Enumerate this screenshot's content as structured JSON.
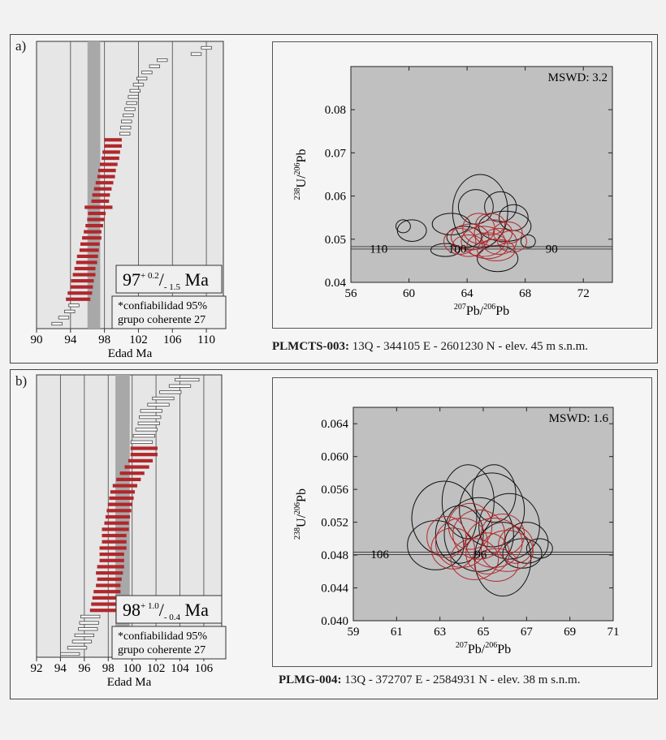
{
  "colors": {
    "accent_red": "#b0282c",
    "plot_gray": "#c0c0c0",
    "band_gray": "#a8a8a8"
  },
  "chart_data": [
    {
      "panel_label": "a)",
      "type": "bar",
      "subtype": "weighted-mean-age-ranked",
      "xlabel": "Edad Ma",
      "xlim": [
        90,
        112
      ],
      "ticks": [
        90,
        94,
        98,
        102,
        106,
        110
      ],
      "tick_labels": [
        "90",
        "94",
        "98",
        "102",
        "106",
        "110"
      ],
      "mean_band": [
        96,
        97.5
      ],
      "result": {
        "value": "97",
        "sup": "+ 0.2",
        "slash": "/",
        "sub": "- 1.5",
        "unit": "Ma"
      },
      "notes": [
        "*confiabilidad 95%",
        "grupo coherente 27"
      ],
      "ages_included": [
        94.9,
        95.1,
        95.3,
        95.4,
        95.6,
        95.7,
        95.9,
        96.0,
        96.2,
        96.3,
        96.5,
        96.6,
        96.8,
        97.0,
        97.1,
        97.3,
        97.5,
        97.6,
        97.8,
        98.0,
        98.2,
        98.3,
        98.5,
        98.7,
        98.8,
        99.0,
        99.0
      ],
      "errors_included": [
        1.4,
        1.4,
        1.3,
        1.3,
        1.3,
        1.2,
        1.2,
        1.2,
        1.1,
        1.1,
        1.1,
        1.0,
        1.0,
        1.0,
        1.0,
        1.6,
        1.0,
        1.0,
        1.0,
        1.0,
        1.0,
        1.0,
        1.0,
        1.0,
        1.0,
        1.0,
        1.0
      ],
      "ages_excluded_low": [
        92.4,
        93.2,
        93.9,
        94.4
      ],
      "errors_excluded_low": [
        0.6,
        0.6,
        0.6,
        0.6
      ],
      "ages_excluded_high": [
        100.4,
        100.5,
        100.6,
        100.8,
        101.0,
        101.2,
        101.4,
        101.6,
        102.0,
        102.4,
        103.0,
        103.9,
        104.8,
        108.8,
        110.0
      ],
      "errors_excluded_high": [
        0.6,
        0.6,
        0.6,
        0.6,
        0.6,
        0.6,
        0.6,
        0.6,
        0.6,
        0.6,
        0.6,
        0.6,
        0.6,
        0.6,
        0.6
      ]
    },
    {
      "panel_label": "a)",
      "type": "scatter",
      "subtype": "tera-wasserburg-concordia",
      "x_label_pre": "207",
      "x_label_mid": "Pb/",
      "x_label_sup2": "206",
      "x_label_post": "Pb",
      "y_label_pre": "238",
      "y_label_mid": "U/",
      "y_label_sup2": "206",
      "y_label_post": "Pb",
      "xlim": [
        56,
        74
      ],
      "ylim": [
        0.04,
        0.09
      ],
      "xticks": [
        56,
        60,
        64,
        68,
        72
      ],
      "xtick_labels": [
        "56",
        "60",
        "64",
        "68",
        "72"
      ],
      "yticks": [
        0.04,
        0.05,
        0.06,
        0.07,
        0.08
      ],
      "ytick_labels": [
        "0.04",
        "0.05",
        "0.06",
        "0.07",
        "0.08"
      ],
      "mswd": "MSWD: 3.2",
      "concordia_y": 0.048,
      "concordia_labels": [
        {
          "text": "110",
          "x": 57.3
        },
        {
          "text": "100",
          "x": 62.7
        },
        {
          "text": "90",
          "x": 69.4
        }
      ],
      "ellipses_black": [
        [
          60.2,
          0.052,
          1.0,
          0.0025
        ],
        [
          59.6,
          0.053,
          0.5,
          0.0015
        ],
        [
          62.9,
          0.0535,
          1.3,
          0.0025
        ],
        [
          64.9,
          0.0565,
          1.9,
          0.0085
        ],
        [
          64.6,
          0.0575,
          1.2,
          0.004
        ],
        [
          66.3,
          0.0575,
          1.1,
          0.0035
        ],
        [
          67.2,
          0.055,
          1.0,
          0.003
        ],
        [
          66.6,
          0.053,
          1.8,
          0.0035
        ],
        [
          62.5,
          0.0475,
          1.0,
          0.0015
        ],
        [
          63.8,
          0.0505,
          1.2,
          0.0025
        ],
        [
          66.1,
          0.0455,
          1.4,
          0.003
        ],
        [
          68.2,
          0.0495,
          0.5,
          0.0015
        ]
      ],
      "ellipses_red": [
        [
          64.2,
          0.0505,
          1.3,
          0.003
        ],
        [
          65.1,
          0.0495,
          1.5,
          0.0035
        ],
        [
          65.8,
          0.0515,
          1.3,
          0.003
        ],
        [
          64.8,
          0.0525,
          1.1,
          0.0035
        ],
        [
          66.2,
          0.0495,
          1.2,
          0.003
        ],
        [
          65.4,
          0.0485,
          1.4,
          0.003
        ],
        [
          64.1,
          0.0485,
          1.1,
          0.0025
        ],
        [
          67.1,
          0.0495,
          1.0,
          0.0025
        ],
        [
          66.8,
          0.0515,
          1.0,
          0.0025
        ],
        [
          65.6,
          0.0535,
          1.0,
          0.0025
        ],
        [
          63.5,
          0.0495,
          1.1,
          0.003
        ],
        [
          66.0,
          0.0475,
          1.3,
          0.0025
        ]
      ],
      "caption_bold": "PLMCTS-003:",
      "caption_rest": " 13Q - 344105 E - 2601230 N - elev. 45 m s.n.m."
    },
    {
      "panel_label": "b)",
      "type": "bar",
      "subtype": "weighted-mean-age-ranked",
      "xlabel": "Edad Ma",
      "xlim": [
        92,
        107.5
      ],
      "ticks": [
        92,
        94,
        96,
        98,
        100,
        102,
        104,
        106
      ],
      "tick_labels": [
        "92",
        "94",
        "96",
        "98",
        "100",
        "102",
        "104",
        "106"
      ],
      "mean_band": [
        98.6,
        99.8
      ],
      "result": {
        "value": "98",
        "sup": "+ 1.0",
        "slash": "/",
        "sub": "- 0.4",
        "unit": "Ma"
      },
      "notes": [
        "*confiabilidad 95%",
        "grupo coherente 27"
      ],
      "ages_included": [
        97.6,
        97.7,
        97.8,
        97.9,
        98.0,
        98.1,
        98.1,
        98.2,
        98.3,
        98.3,
        98.4,
        98.5,
        98.5,
        98.6,
        98.7,
        98.8,
        98.9,
        99.0,
        99.1,
        99.2,
        99.4,
        99.7,
        100.0,
        100.4,
        100.7,
        101.0,
        101.0
      ],
      "errors_included": [
        1.1,
        1.1,
        1.1,
        1.1,
        1.0,
        1.0,
        1.1,
        1.1,
        1.0,
        1.0,
        1.1,
        1.0,
        1.0,
        1.1,
        1.0,
        1.0,
        1.0,
        1.0,
        1.0,
        1.0,
        1.0,
        1.0,
        1.0,
        1.0,
        1.0,
        1.1,
        1.1
      ],
      "ages_excluded_low": [
        94.8,
        95.4,
        95.8,
        96.0,
        96.3,
        96.4,
        96.5
      ],
      "errors_excluded_low": [
        0.8,
        0.8,
        0.8,
        0.8,
        0.8,
        0.8,
        0.8
      ],
      "ages_excluded_high": [
        100.8,
        101.0,
        101.2,
        101.4,
        101.5,
        101.6,
        102.2,
        102.6,
        103.2,
        104.0,
        104.6
      ],
      "errors_excluded_high": [
        0.9,
        0.9,
        0.9,
        0.9,
        0.9,
        0.9,
        0.9,
        0.9,
        0.9,
        0.9,
        1.0
      ]
    },
    {
      "panel_label": "b)",
      "type": "scatter",
      "subtype": "tera-wasserburg-concordia",
      "x_label_pre": "207",
      "x_label_mid": "Pb/",
      "x_label_sup2": "206",
      "x_label_post": "Pb",
      "y_label_pre": "238",
      "y_label_mid": "U/",
      "y_label_sup2": "206",
      "y_label_post": "Pb",
      "xlim": [
        59,
        71
      ],
      "ylim": [
        0.04,
        0.066
      ],
      "xticks": [
        59,
        61,
        63,
        65,
        67,
        69,
        71
      ],
      "xtick_labels": [
        "59",
        "61",
        "63",
        "65",
        "67",
        "69",
        "71"
      ],
      "yticks": [
        0.04,
        0.044,
        0.048,
        0.052,
        0.056,
        0.06,
        0.064
      ],
      "ytick_labels": [
        "0.040",
        "0.044",
        "0.048",
        "0.052",
        "0.056",
        "0.060",
        "0.064"
      ],
      "mswd": "MSWD: 1.6",
      "concordia_y": 0.0482,
      "concordia_labels": [
        {
          "text": "106",
          "x": 59.8
        },
        {
          "text": "96",
          "x": 64.6
        }
      ],
      "ellipses_black": [
        [
          63.2,
          0.0525,
          1.5,
          0.0045
        ],
        [
          64.3,
          0.0545,
          1.2,
          0.0045
        ],
        [
          65.4,
          0.0535,
          1.5,
          0.0045
        ],
        [
          66.2,
          0.0515,
          1.4,
          0.004
        ],
        [
          64.8,
          0.0505,
          1.6,
          0.0045
        ],
        [
          63.9,
          0.0505,
          1.1,
          0.0035
        ],
        [
          65.9,
          0.0475,
          1.3,
          0.0045
        ],
        [
          67.0,
          0.0495,
          1.0,
          0.0025
        ],
        [
          67.6,
          0.0488,
          0.6,
          0.0012
        ],
        [
          66.8,
          0.0482,
          0.9,
          0.0018
        ],
        [
          62.8,
          0.0492,
          1.3,
          0.003
        ],
        [
          65.5,
          0.0555,
          1.0,
          0.0035
        ]
      ],
      "ellipses_red": [
        [
          64.0,
          0.0495,
          1.2,
          0.003
        ],
        [
          64.8,
          0.0505,
          1.2,
          0.003
        ],
        [
          65.5,
          0.0495,
          1.3,
          0.003
        ],
        [
          66.1,
          0.0485,
          1.2,
          0.0025
        ],
        [
          63.6,
          0.0488,
          1.0,
          0.0025
        ],
        [
          65.2,
          0.0482,
          1.0,
          0.0025
        ],
        [
          64.4,
          0.0515,
          1.0,
          0.0028
        ],
        [
          65.9,
          0.0505,
          1.0,
          0.0025
        ],
        [
          66.5,
          0.0492,
          0.8,
          0.0022
        ],
        [
          64.6,
          0.0475,
          1.1,
          0.0025
        ],
        [
          63.3,
          0.0502,
          0.9,
          0.0025
        ],
        [
          65.6,
          0.0468,
          1.0,
          0.002
        ]
      ],
      "caption_bold": "PLMG-004:",
      "caption_rest": " 13Q - 372707 E - 2584931 N - elev. 38 m s.n.m."
    }
  ]
}
